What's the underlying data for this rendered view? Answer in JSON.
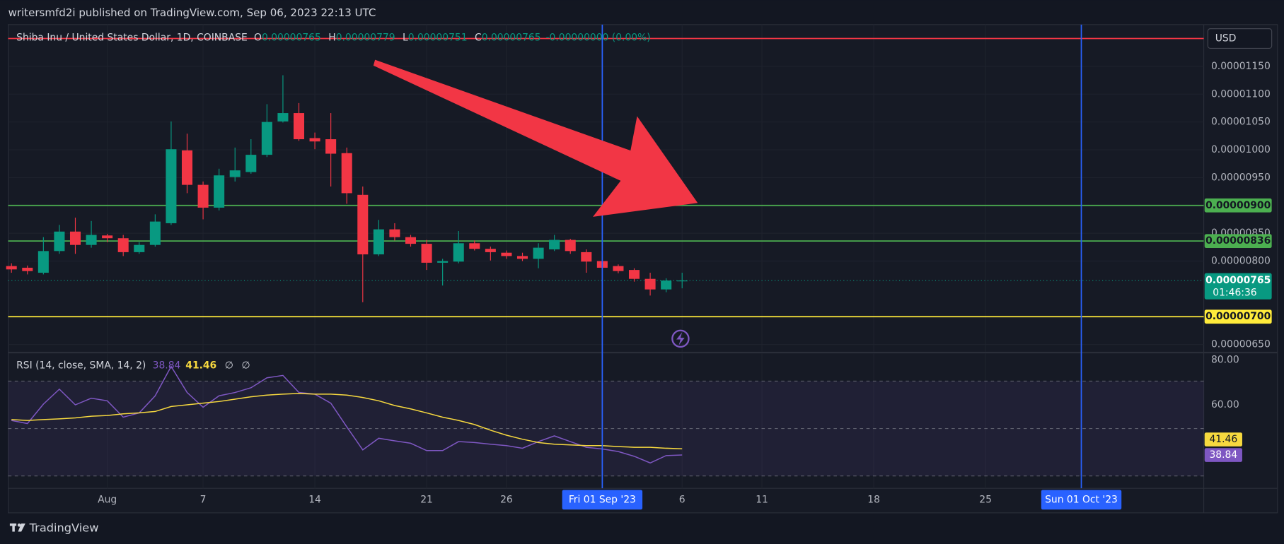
{
  "header": {
    "text": "writersmfd2i published on TradingView.com, Sep 06, 2023 22:13 UTC"
  },
  "footer": {
    "brand": "TradingView"
  },
  "chart_data": [
    {
      "type": "candlestick",
      "title": "Shiba Inu / United States Dollar, 1D, COINBASE",
      "legend": [
        {
          "label": "O",
          "value": "0.00000765"
        },
        {
          "label": "H",
          "value": "0.00000779"
        },
        {
          "label": "L",
          "value": "0.00000751"
        },
        {
          "label": "C",
          "value": "0.00000765"
        }
      ],
      "change": "-0.00000000 (0.00%)",
      "currency": "USD",
      "x": [
        "2023-07-26",
        "2023-07-27",
        "2023-07-28",
        "2023-07-29",
        "2023-07-30",
        "2023-07-31",
        "2023-08-01",
        "2023-08-02",
        "2023-08-03",
        "2023-08-04",
        "2023-08-05",
        "2023-08-06",
        "2023-08-07",
        "2023-08-08",
        "2023-08-09",
        "2023-08-10",
        "2023-08-11",
        "2023-08-12",
        "2023-08-13",
        "2023-08-14",
        "2023-08-15",
        "2023-08-16",
        "2023-08-17",
        "2023-08-18",
        "2023-08-19",
        "2023-08-20",
        "2023-08-21",
        "2023-08-22",
        "2023-08-23",
        "2023-08-24",
        "2023-08-25",
        "2023-08-26",
        "2023-08-27",
        "2023-08-28",
        "2023-08-29",
        "2023-08-30",
        "2023-08-31",
        "2023-09-01",
        "2023-09-02",
        "2023-09-03",
        "2023-09-04",
        "2023-09-05",
        "2023-09-06"
      ],
      "open": [
        7.91e-06,
        7.88e-06,
        7.79e-06,
        8.18e-06,
        8.53e-06,
        8.29e-06,
        8.46e-06,
        8.41e-06,
        8.16e-06,
        8.29e-06,
        8.68e-06,
        9.99e-06,
        9.37e-06,
        8.96e-06,
        9.51e-06,
        9.6e-06,
        9.91e-06,
        1.051e-05,
        1.066e-05,
        1.021e-05,
        1.019e-05,
        9.94e-06,
        9.19e-06,
        8.12e-06,
        8.57e-06,
        8.43e-06,
        8.31e-06,
        7.97e-06,
        7.99e-06,
        8.32e-06,
        8.22e-06,
        8.15e-06,
        8.09e-06,
        8.04e-06,
        8.21e-06,
        8.38e-06,
        8.16e-06,
        8e-06,
        7.91e-06,
        7.84e-06,
        7.68e-06,
        7.49e-06,
        7.65e-06
      ],
      "high": [
        7.96e-06,
        7.92e-06,
        8.43e-06,
        8.65e-06,
        8.78e-06,
        8.72e-06,
        8.49e-06,
        8.47e-06,
        8.34e-06,
        8.84e-06,
        1.051e-05,
        1.029e-05,
        9.43e-06,
        9.66e-06,
        1.004e-05,
        1.019e-05,
        1.082e-05,
        1.134e-05,
        1.084e-05,
        1.031e-05,
        1.066e-05,
        1.004e-05,
        9.34e-06,
        8.74e-06,
        8.68e-06,
        8.47e-06,
        8.38e-06,
        8.04e-06,
        8.54e-06,
        8.37e-06,
        8.26e-06,
        8.19e-06,
        8.15e-06,
        8.32e-06,
        8.47e-06,
        8.4e-06,
        8.21e-06,
        8.04e-06,
        7.94e-06,
        7.87e-06,
        7.79e-06,
        7.69e-06,
        7.79e-06
      ],
      "low": [
        7.79e-06,
        7.76e-06,
        7.76e-06,
        8.13e-06,
        8.13e-06,
        8.24e-06,
        8.34e-06,
        8.09e-06,
        8.13e-06,
        8.26e-06,
        8.65e-06,
        9.22e-06,
        8.75e-06,
        8.91e-06,
        9.43e-06,
        9.57e-06,
        9.87e-06,
        1.049e-05,
        1.016e-05,
        1.001e-05,
        9.34e-06,
        9.03e-06,
        7.26e-06,
        8.09e-06,
        8.37e-06,
        8.26e-06,
        7.84e-06,
        7.56e-06,
        7.96e-06,
        8.19e-06,
        8.01e-06,
        8.04e-06,
        8e-06,
        7.87e-06,
        8.18e-06,
        8.13e-06,
        7.79e-06,
        7.84e-06,
        7.78e-06,
        7.63e-06,
        7.38e-06,
        7.44e-06,
        7.51e-06
      ],
      "close": [
        7.85e-06,
        7.82e-06,
        8.18e-06,
        8.53e-06,
        8.29e-06,
        8.47e-06,
        8.41e-06,
        8.16e-06,
        8.29e-06,
        8.71e-06,
        1.001e-05,
        9.37e-06,
        8.96e-06,
        9.54e-06,
        9.63e-06,
        9.91e-06,
        1.05e-05,
        1.066e-05,
        1.019e-05,
        1.015e-05,
        9.93e-06,
        9.22e-06,
        8.12e-06,
        8.57e-06,
        8.43e-06,
        8.31e-06,
        7.97e-06,
        8e-06,
        8.32e-06,
        8.22e-06,
        8.16e-06,
        8.09e-06,
        8.04e-06,
        8.24e-06,
        8.38e-06,
        8.18e-06,
        7.99e-06,
        7.88e-06,
        7.82e-06,
        7.68e-06,
        7.49e-06,
        7.65e-06,
        7.65e-06
      ],
      "up_color": "#089981",
      "down_color": "#f23645",
      "xlim": [
        "2023-07-25",
        "2023-10-10"
      ],
      "xticks": [
        {
          "value": "2023-08-01",
          "label": "Aug"
        },
        {
          "value": "2023-08-07",
          "label": "7"
        },
        {
          "value": "2023-08-14",
          "label": "14"
        },
        {
          "value": "2023-08-21",
          "label": "21"
        },
        {
          "value": "2023-08-26",
          "label": "26"
        },
        {
          "value": "2023-09-06",
          "label": "6"
        },
        {
          "value": "2023-09-11",
          "label": "11"
        },
        {
          "value": "2023-09-18",
          "label": "18"
        },
        {
          "value": "2023-09-25",
          "label": "25"
        }
      ],
      "vlines": [
        {
          "x": "2023-09-01",
          "label": "Fri 01 Sep '23",
          "color": "#2962ff"
        },
        {
          "x": "2023-10-01",
          "label": "Sun 01 Oct '23",
          "color": "#2962ff"
        }
      ],
      "ylim": [
        6.37e-06,
        1.225e-05
      ],
      "yticks": [
        {
          "value": 1.15e-05,
          "label": "0.00001150"
        },
        {
          "value": 1.1e-05,
          "label": "0.00001100"
        },
        {
          "value": 1.05e-05,
          "label": "0.00001050"
        },
        {
          "value": 1e-05,
          "label": "0.00001000"
        },
        {
          "value": 9.5e-06,
          "label": "0.00000950"
        },
        {
          "value": 8.5e-06,
          "label": "0.00000850"
        },
        {
          "value": 8e-06,
          "label": "0.00000800"
        },
        {
          "value": 6.5e-06,
          "label": "0.00000650"
        }
      ],
      "grid": true,
      "hlines": [
        {
          "value": 1.2e-05,
          "color": "#f23645"
        },
        {
          "value": 9e-06,
          "label": "0.00000900",
          "color": "#4caf50"
        },
        {
          "value": 8.36e-06,
          "label": "0.00000836",
          "color": "#4caf50"
        },
        {
          "value": 7e-06,
          "label": "0.00000700",
          "color": "#ffeb3b"
        }
      ],
      "last_price": {
        "value": 7.65e-06,
        "value_label": "0.00000765",
        "countdown": "01:46:36",
        "color": "#089981"
      }
    },
    {
      "type": "line",
      "title": "RSI (14, close, SMA, 14, 2)",
      "extras": [
        "∅",
        "∅"
      ],
      "x": [
        "2023-07-26",
        "2023-07-27",
        "2023-07-28",
        "2023-07-29",
        "2023-07-30",
        "2023-07-31",
        "2023-08-01",
        "2023-08-02",
        "2023-08-03",
        "2023-08-04",
        "2023-08-05",
        "2023-08-06",
        "2023-08-07",
        "2023-08-08",
        "2023-08-09",
        "2023-08-10",
        "2023-08-11",
        "2023-08-12",
        "2023-08-13",
        "2023-08-14",
        "2023-08-15",
        "2023-08-16",
        "2023-08-17",
        "2023-08-18",
        "2023-08-19",
        "2023-08-20",
        "2023-08-21",
        "2023-08-22",
        "2023-08-23",
        "2023-08-24",
        "2023-08-25",
        "2023-08-26",
        "2023-08-27",
        "2023-08-28",
        "2023-08-29",
        "2023-08-30",
        "2023-08-31",
        "2023-09-01",
        "2023-09-02",
        "2023-09-03",
        "2023-09-04",
        "2023-09-05",
        "2023-09-06"
      ],
      "series": [
        {
          "color": "#7e57c2",
          "values": [
            53.4,
            52.1,
            60.3,
            66.6,
            60.0,
            62.8,
            61.7,
            54.8,
            56.6,
            63.8,
            76.2,
            65.2,
            59.0,
            63.8,
            65.2,
            67.2,
            71.4,
            72.4,
            65.2,
            64.5,
            60.7,
            50.7,
            41.0,
            45.9,
            44.8,
            43.8,
            40.7,
            40.7,
            44.5,
            44.1,
            43.4,
            42.8,
            41.7,
            44.5,
            46.9,
            44.5,
            42.1,
            41.4,
            40.3,
            38.3,
            35.5,
            38.6,
            38.84
          ]
        },
        {
          "color": "#f7d93f",
          "values": [
            53.8,
            53.4,
            53.8,
            54.1,
            54.5,
            55.2,
            55.5,
            56.2,
            56.6,
            57.2,
            59.3,
            60.0,
            60.7,
            61.4,
            62.4,
            63.4,
            64.1,
            64.5,
            64.8,
            64.5,
            64.5,
            64.1,
            63.1,
            61.7,
            59.7,
            58.3,
            56.6,
            54.8,
            53.4,
            51.7,
            49.3,
            47.2,
            45.5,
            44.1,
            43.4,
            43.1,
            42.8,
            42.8,
            42.4,
            42.1,
            42.1,
            41.7,
            41.46
          ]
        }
      ],
      "ylim": [
        24.8,
        81.7
      ],
      "yticks": [
        {
          "value": 80,
          "label": "80.00"
        },
        {
          "value": 60,
          "label": "60.00"
        }
      ],
      "levels": [
        70,
        50,
        30
      ],
      "band": [
        30,
        70
      ],
      "band_color": "#7e57c2"
    }
  ]
}
